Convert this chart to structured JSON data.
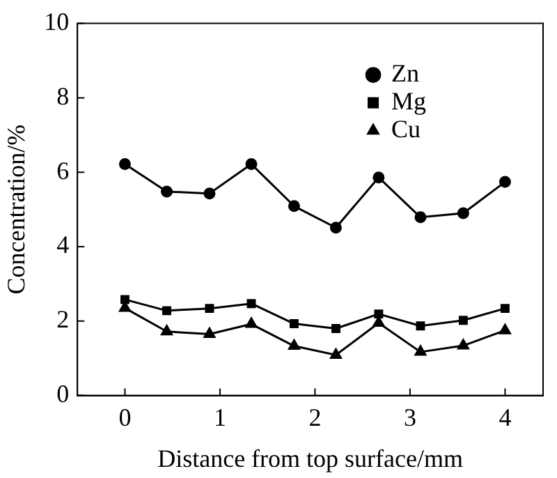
{
  "chart_data": {
    "type": "line",
    "xlabel": "Distance from top surface/mm",
    "ylabel": "Concentration/%",
    "x": [
      0,
      0.44,
      0.89,
      1.33,
      1.78,
      2.22,
      2.67,
      3.11,
      3.56,
      4
    ],
    "xlim": [
      -0.5,
      4.4
    ],
    "xticks": [
      0,
      1,
      2,
      3,
      4
    ],
    "ylim": [
      0,
      10
    ],
    "yticks": [
      0,
      2,
      4,
      6,
      8,
      10
    ],
    "grid": false,
    "legend": "top right",
    "line_style": "solid",
    "series": [
      {
        "name": "Zn",
        "color": "#000000",
        "marker": "circle",
        "values": [
          6.22,
          5.48,
          5.43,
          6.22,
          5.09,
          4.51,
          5.86,
          4.79,
          4.9,
          5.74
        ]
      },
      {
        "name": "Mg",
        "color": "#000000",
        "marker": "square",
        "values": [
          2.58,
          2.28,
          2.34,
          2.47,
          1.93,
          1.8,
          2.19,
          1.87,
          2.02,
          2.34
        ]
      },
      {
        "name": "Cu",
        "color": "#000000",
        "marker": "triangle",
        "values": [
          2.35,
          1.72,
          1.65,
          1.92,
          1.33,
          1.09,
          1.95,
          1.17,
          1.34,
          1.75
        ]
      }
    ]
  }
}
